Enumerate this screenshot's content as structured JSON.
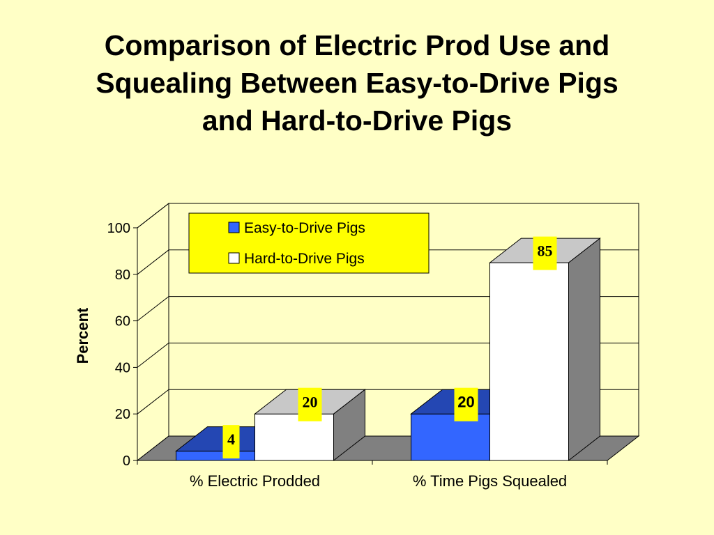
{
  "title_lines": [
    "Comparison of Electric Prod Use and",
    "Squealing Between Easy-to-Drive Pigs",
    "and Hard-to-Drive Pigs"
  ],
  "chart_data": {
    "type": "bar",
    "title": "Comparison of Electric Prod Use and Squealing Between Easy-to-Drive Pigs and Hard-to-Drive Pigs",
    "categories": [
      "% Electric Prodded",
      "% Time Pigs Squealed"
    ],
    "series": [
      {
        "name": "Easy-to-Drive Pigs",
        "values": [
          4,
          20
        ],
        "color": "#3366ff"
      },
      {
        "name": "Hard-to-Drive Pigs",
        "values": [
          20,
          85
        ],
        "color": "#ffffff"
      }
    ],
    "data_labels": [
      [
        "4",
        "20"
      ],
      [
        "20",
        "85"
      ]
    ],
    "ylabel": "Percent",
    "xlabel": "",
    "ylim": [
      0,
      100
    ],
    "yticks": [
      "0",
      "20",
      "40",
      "60",
      "80",
      "100"
    ],
    "grid": true,
    "legend_position": "top-left",
    "legend_background": "#ffff00",
    "label_background": "#ffff00",
    "style": "3d-clustered-bar"
  }
}
